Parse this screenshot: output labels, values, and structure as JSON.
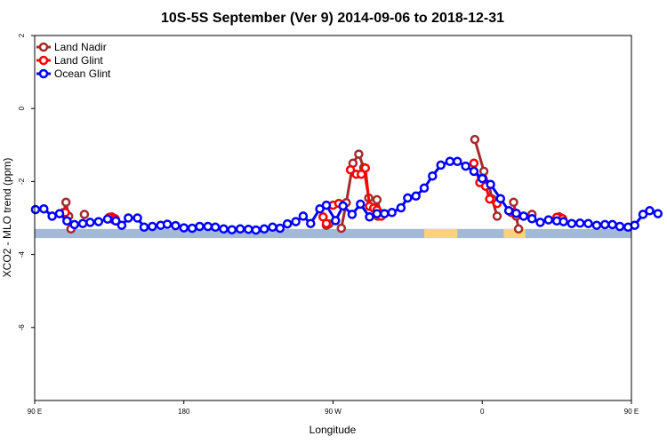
{
  "chart_data": {
    "type": "line",
    "title": "10S-5S September (Ver 9)   2014-09-06 to 2018-12-31",
    "xlabel": "Longitude",
    "ylabel": "XCO2 - MLO trend (ppm)",
    "xlim": [
      90,
      450
    ],
    "ylim": [
      -8,
      2
    ],
    "x_ticks": [
      {
        "value": 90,
        "label": "90 E"
      },
      {
        "value": 180,
        "label": "180"
      },
      {
        "value": 270,
        "label": "90 W"
      },
      {
        "value": 360,
        "label": "0"
      },
      {
        "value": 450,
        "label": "90 E"
      },
      {
        "value": 540,
        "label": "180"
      }
    ],
    "y_ticks": [
      {
        "value": 2,
        "label": "2"
      },
      {
        "value": 0,
        "label": "0"
      },
      {
        "value": -2,
        "label": "-2"
      },
      {
        "value": -4,
        "label": "-4"
      },
      {
        "value": -6,
        "label": "-6"
      }
    ],
    "legend_position": "top-left",
    "grid": false,
    "map_strip": {
      "y_range": [
        -3.55,
        -3.3
      ],
      "ocean_color": "#a3b9d6",
      "land_color": "#f5d57a",
      "land_segments": [
        [
          325,
          345
        ],
        [
          373,
          386
        ],
        [
          463,
          483
        ],
        [
          500,
          518
        ]
      ]
    },
    "series": [
      {
        "name": "Land Nadir",
        "color": "#a52a2a",
        "segments": [
          [
            [
              107.5,
              -2.85
            ],
            [
              108.9,
              -2.57
            ],
            [
              110.5,
              -2.95
            ],
            [
              111.9,
              -3.3
            ]
          ],
          [
            [
              120,
              -2.9
            ]
          ],
          [
            [
              136.5,
              -2.97
            ],
            [
              137.7,
              -3.05
            ]
          ],
          [
            [
              266,
              -3.2
            ]
          ],
          [
            [
              267.5,
              -3.16
            ]
          ],
          [
            [
              275,
              -3.28
            ],
            [
              278,
              -2.58
            ],
            [
              282,
              -1.5
            ],
            [
              285.5,
              -1.25
            ],
            [
              288.5,
              -1.62
            ],
            [
              291.5,
              -2.45
            ],
            [
              294,
              -2.6
            ],
            [
              296.5,
              -2.5
            ],
            [
              299,
              -2.88
            ]
          ],
          [
            [
              297,
              -2.95
            ]
          ],
          [
            [
              355.5,
              -0.85
            ],
            [
              361,
              -1.72
            ],
            [
              364,
              -2.1
            ],
            [
              366,
              -2.48
            ],
            [
              369,
              -2.95
            ]
          ],
          [
            [
              377.5,
              -2.85
            ]
          ],
          [
            [
              378.9,
              -2.57
            ],
            [
              380.5,
              -2.95
            ],
            [
              381.9,
              -3.3
            ]
          ],
          [
            [
              390,
              -2.9
            ]
          ],
          [
            [
              406.5,
              -2.97
            ],
            [
              408,
              -3.05
            ]
          ]
        ]
      },
      {
        "name": "Land Glint",
        "color": "#ff0000",
        "segments": [
          [
            [
              108.5,
              -2.85
            ]
          ],
          [
            [
              135,
              -2.98
            ],
            [
              138.5,
              -3.02
            ]
          ],
          [
            [
              264,
              -2.97
            ],
            [
              266,
              -3.15
            ]
          ],
          [
            [
              270,
              -2.65
            ],
            [
              273.5,
              -2.6
            ]
          ],
          [
            [
              280.5,
              -1.68
            ],
            [
              284,
              -1.8
            ],
            [
              287,
              -1.8
            ],
            [
              289.5,
              -1.63
            ],
            [
              292,
              -2.68
            ],
            [
              294.5,
              -2.73
            ],
            [
              296.5,
              -2.78
            ],
            [
              299,
              -2.95
            ]
          ],
          [
            [
              355,
              -1.5
            ],
            [
              358.5,
              -2.03
            ],
            [
              362,
              -2.13
            ],
            [
              364.5,
              -2.48
            ],
            [
              369,
              -2.6
            ]
          ],
          [
            [
              378.5,
              -2.85
            ]
          ],
          [
            [
              405,
              -2.98
            ],
            [
              408.5,
              -3.02
            ]
          ]
        ]
      },
      {
        "name": "Ocean Glint",
        "color": "#0000ff",
        "segments": [
          [
            [
              90.5,
              -2.77
            ],
            [
              95.5,
              -2.75
            ],
            [
              100.5,
              -2.95
            ],
            [
              105,
              -2.88
            ],
            [
              109.5,
              -3.08
            ],
            [
              114,
              -3.18
            ],
            [
              119,
              -3.15
            ],
            [
              123.5,
              -3.12
            ],
            [
              128.5,
              -3.1
            ],
            [
              134,
              -3.03
            ],
            [
              139,
              -3.08
            ],
            [
              142.5,
              -3.2
            ],
            [
              146.5,
              -3.0
            ],
            [
              152,
              -3.0
            ],
            [
              156,
              -3.25
            ],
            [
              161,
              -3.23
            ],
            [
              166,
              -3.2
            ],
            [
              170,
              -3.17
            ],
            [
              175,
              -3.21
            ],
            [
              180,
              -3.27
            ],
            [
              185,
              -3.28
            ],
            [
              189.5,
              -3.23
            ],
            [
              194.5,
              -3.23
            ],
            [
              199,
              -3.25
            ],
            [
              204,
              -3.3
            ],
            [
              209,
              -3.32
            ],
            [
              214,
              -3.3
            ],
            [
              219,
              -3.31
            ],
            [
              223.5,
              -3.33
            ],
            [
              228.5,
              -3.3
            ],
            [
              233.5,
              -3.25
            ],
            [
              238,
              -3.28
            ],
            [
              242.5,
              -3.16
            ],
            [
              247.5,
              -3.1
            ],
            [
              252,
              -2.95
            ],
            [
              256.5,
              -3.15
            ],
            [
              262,
              -2.75
            ],
            [
              266,
              -2.65
            ],
            [
              271.5,
              -3.07
            ],
            [
              276,
              -2.67
            ],
            [
              281.5,
              -2.9
            ],
            [
              286.5,
              -2.62
            ],
            [
              292,
              -2.97
            ],
            [
              296.5,
              -2.88
            ],
            [
              301,
              -2.88
            ],
            [
              305.5,
              -2.85
            ],
            [
              311,
              -2.72
            ],
            [
              315,
              -2.45
            ],
            [
              320,
              -2.4
            ],
            [
              325,
              -2.18
            ],
            [
              330,
              -1.85
            ],
            [
              335,
              -1.55
            ],
            [
              340.5,
              -1.45
            ],
            [
              345,
              -1.45
            ],
            [
              350,
              -1.58
            ],
            [
              355,
              -1.72
            ],
            [
              360,
              -1.92
            ],
            [
              365,
              -2.08
            ],
            [
              371,
              -2.47
            ],
            [
              376,
              -2.8
            ],
            [
              380.5,
              -2.87
            ],
            [
              385,
              -2.95
            ],
            [
              390,
              -3.02
            ],
            [
              395,
              -3.12
            ],
            [
              400,
              -3.05
            ],
            [
              405,
              -3.08
            ],
            [
              409,
              -3.1
            ],
            [
              414,
              -3.15
            ],
            [
              419,
              -3.14
            ],
            [
              424,
              -3.15
            ],
            [
              429,
              -3.2
            ],
            [
              434,
              -3.18
            ],
            [
              438.5,
              -3.18
            ],
            [
              443,
              -3.23
            ],
            [
              448,
              -3.25
            ],
            [
              452,
              -3.2
            ],
            [
              457,
              -2.9
            ],
            [
              461,
              -2.8
            ],
            [
              466,
              -2.88
            ]
          ]
        ]
      }
    ]
  }
}
